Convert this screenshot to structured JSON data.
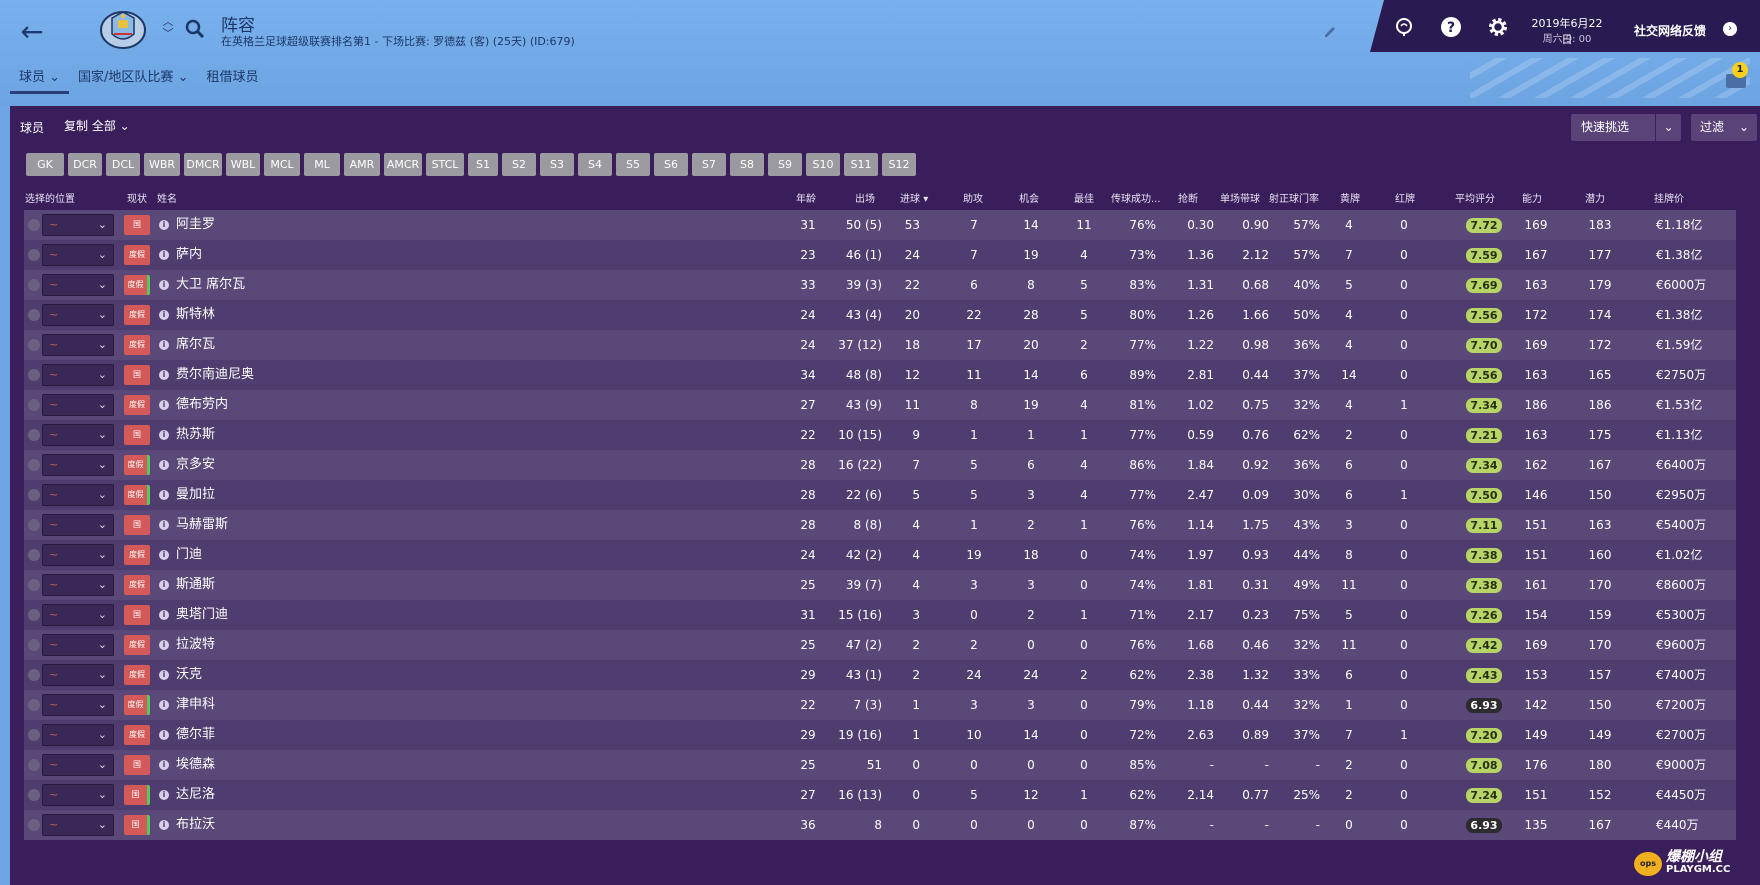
{
  "header": {
    "title": "阵容",
    "subtitle": "在英格兰足球超级联赛排名第1 - 下场比赛: 罗德兹 (客) (25天) (ID:679)",
    "date": "2019年6月22日",
    "date_sub": "周六 9: 00",
    "social_label": "社交网络反馈"
  },
  "subnav": {
    "items": [
      "球员",
      "国家/地区队比赛",
      "租借球员"
    ]
  },
  "notification_count": "1",
  "toolbar": {
    "players_label": "球员",
    "copy_label": "复制 全部",
    "quick_pick_label": "快速挑选",
    "filter_label": "过滤"
  },
  "positions": [
    "GK",
    "DCR",
    "DCL",
    "WBR",
    "DMCR",
    "WBL",
    "MCL",
    "ML",
    "AMR",
    "AMCR",
    "STCL",
    "S1",
    "S2",
    "S3",
    "S4",
    "S5",
    "S6",
    "S7",
    "S8",
    "S9",
    "S10",
    "S11",
    "S12"
  ],
  "columns": {
    "select_pos": "选择的位置",
    "status": "现状",
    "name": "姓名",
    "age": "年龄",
    "apps": "出场",
    "goals": "进球",
    "assists": "助攻",
    "chances": "机会",
    "pom": "最佳",
    "pass": "传球成功...",
    "tackles": "抢断",
    "dribbles": "单场带球",
    "shots": "射正球门率",
    "yellow": "黄牌",
    "red": "红牌",
    "avg": "平均评分",
    "ca": "能力",
    "pa": "潜力",
    "value": "挂牌价"
  },
  "players": [
    {
      "status": "国家/...",
      "green": false,
      "name": "阿圭罗",
      "age": "31",
      "apps": "50 (5)",
      "goals": "53",
      "assists": "7",
      "chances": "14",
      "pom": "11",
      "pass": "76%",
      "tackles": "0.30",
      "dribbles": "0.90",
      "shots": "57%",
      "yellow": "4",
      "red": "0",
      "avg": "7.72",
      "ca": "169",
      "pa": "183",
      "value": "€1.18亿"
    },
    {
      "status": "度假",
      "green": false,
      "name": "萨内",
      "age": "23",
      "apps": "46 (1)",
      "goals": "24",
      "assists": "7",
      "chances": "19",
      "pom": "4",
      "pass": "73%",
      "tackles": "1.36",
      "dribbles": "2.12",
      "shots": "57%",
      "yellow": "7",
      "red": "0",
      "avg": "7.59",
      "ca": "167",
      "pa": "177",
      "value": "€1.38亿"
    },
    {
      "status": "度假",
      "green": true,
      "name": "大卫 席尔瓦",
      "age": "33",
      "apps": "39 (3)",
      "goals": "22",
      "assists": "6",
      "chances": "8",
      "pom": "5",
      "pass": "83%",
      "tackles": "1.31",
      "dribbles": "0.68",
      "shots": "40%",
      "yellow": "5",
      "red": "0",
      "avg": "7.69",
      "ca": "163",
      "pa": "179",
      "value": "€6000万"
    },
    {
      "status": "度假",
      "green": false,
      "name": "斯特林",
      "age": "24",
      "apps": "43 (4)",
      "goals": "20",
      "assists": "22",
      "chances": "28",
      "pom": "5",
      "pass": "80%",
      "tackles": "1.26",
      "dribbles": "1.66",
      "shots": "50%",
      "yellow": "4",
      "red": "0",
      "avg": "7.56",
      "ca": "172",
      "pa": "174",
      "value": "€1.38亿"
    },
    {
      "status": "度假",
      "green": false,
      "name": "席尔瓦",
      "age": "24",
      "apps": "37 (12)",
      "goals": "18",
      "assists": "17",
      "chances": "20",
      "pom": "2",
      "pass": "77%",
      "tackles": "1.22",
      "dribbles": "0.98",
      "shots": "36%",
      "yellow": "4",
      "red": "0",
      "avg": "7.70",
      "ca": "169",
      "pa": "172",
      "value": "€1.59亿"
    },
    {
      "status": "国家/...",
      "green": false,
      "name": "费尔南迪尼奥",
      "age": "34",
      "apps": "48 (8)",
      "goals": "12",
      "assists": "11",
      "chances": "14",
      "pom": "6",
      "pass": "89%",
      "tackles": "2.81",
      "dribbles": "0.44",
      "shots": "37%",
      "yellow": "14",
      "red": "0",
      "avg": "7.56",
      "ca": "163",
      "pa": "165",
      "value": "€2750万"
    },
    {
      "status": "度假",
      "green": false,
      "name": "德布劳内",
      "age": "27",
      "apps": "43 (9)",
      "goals": "11",
      "assists": "8",
      "chances": "19",
      "pom": "4",
      "pass": "81%",
      "tackles": "1.02",
      "dribbles": "0.75",
      "shots": "32%",
      "yellow": "4",
      "red": "1",
      "avg": "7.34",
      "ca": "186",
      "pa": "186",
      "value": "€1.53亿"
    },
    {
      "status": "国家/...",
      "green": false,
      "name": "热苏斯",
      "age": "22",
      "apps": "10 (15)",
      "goals": "9",
      "assists": "1",
      "chances": "1",
      "pom": "1",
      "pass": "77%",
      "tackles": "0.59",
      "dribbles": "0.76",
      "shots": "62%",
      "yellow": "2",
      "red": "0",
      "avg": "7.21",
      "ca": "163",
      "pa": "175",
      "value": "€1.13亿"
    },
    {
      "status": "度假",
      "green": true,
      "name": "京多安",
      "age": "28",
      "apps": "16 (22)",
      "goals": "7",
      "assists": "5",
      "chances": "6",
      "pom": "4",
      "pass": "86%",
      "tackles": "1.84",
      "dribbles": "0.92",
      "shots": "36%",
      "yellow": "6",
      "red": "0",
      "avg": "7.34",
      "ca": "162",
      "pa": "167",
      "value": "€6400万"
    },
    {
      "status": "度假",
      "green": true,
      "name": "曼加拉",
      "age": "28",
      "apps": "22 (6)",
      "goals": "5",
      "assists": "5",
      "chances": "3",
      "pom": "4",
      "pass": "77%",
      "tackles": "2.47",
      "dribbles": "0.09",
      "shots": "30%",
      "yellow": "6",
      "red": "1",
      "avg": "7.50",
      "ca": "146",
      "pa": "150",
      "value": "€2950万"
    },
    {
      "status": "国家/...",
      "green": false,
      "name": "马赫雷斯",
      "age": "28",
      "apps": "8 (8)",
      "goals": "4",
      "assists": "1",
      "chances": "2",
      "pom": "1",
      "pass": "76%",
      "tackles": "1.14",
      "dribbles": "1.75",
      "shots": "43%",
      "yellow": "3",
      "red": "0",
      "avg": "7.11",
      "ca": "151",
      "pa": "163",
      "value": "€5400万"
    },
    {
      "status": "度假",
      "green": false,
      "name": "门迪",
      "age": "24",
      "apps": "42 (2)",
      "goals": "4",
      "assists": "19",
      "chances": "18",
      "pom": "0",
      "pass": "74%",
      "tackles": "1.97",
      "dribbles": "0.93",
      "shots": "44%",
      "yellow": "8",
      "red": "0",
      "avg": "7.38",
      "ca": "151",
      "pa": "160",
      "value": "€1.02亿"
    },
    {
      "status": "度假",
      "green": false,
      "name": "斯通斯",
      "age": "25",
      "apps": "39 (7)",
      "goals": "4",
      "assists": "3",
      "chances": "3",
      "pom": "0",
      "pass": "74%",
      "tackles": "1.81",
      "dribbles": "0.31",
      "shots": "49%",
      "yellow": "11",
      "red": "0",
      "avg": "7.38",
      "ca": "161",
      "pa": "170",
      "value": "€8600万"
    },
    {
      "status": "国家/...",
      "green": false,
      "name": "奥塔门迪",
      "age": "31",
      "apps": "15 (16)",
      "goals": "3",
      "assists": "0",
      "chances": "2",
      "pom": "1",
      "pass": "71%",
      "tackles": "2.17",
      "dribbles": "0.23",
      "shots": "75%",
      "yellow": "5",
      "red": "0",
      "avg": "7.26",
      "ca": "154",
      "pa": "159",
      "value": "€5300万"
    },
    {
      "status": "度假",
      "green": false,
      "name": "拉波特",
      "age": "25",
      "apps": "47 (2)",
      "goals": "2",
      "assists": "2",
      "chances": "0",
      "pom": "0",
      "pass": "76%",
      "tackles": "1.68",
      "dribbles": "0.46",
      "shots": "32%",
      "yellow": "11",
      "red": "0",
      "avg": "7.42",
      "ca": "169",
      "pa": "170",
      "value": "€9600万"
    },
    {
      "status": "度假",
      "green": false,
      "name": "沃克",
      "age": "29",
      "apps": "43 (1)",
      "goals": "2",
      "assists": "24",
      "chances": "24",
      "pom": "2",
      "pass": "62%",
      "tackles": "2.38",
      "dribbles": "1.32",
      "shots": "33%",
      "yellow": "6",
      "red": "0",
      "avg": "7.43",
      "ca": "153",
      "pa": "157",
      "value": "€7400万"
    },
    {
      "status": "度假",
      "green": true,
      "name": "津申科",
      "age": "22",
      "apps": "7 (3)",
      "goals": "1",
      "assists": "3",
      "chances": "3",
      "pom": "0",
      "pass": "79%",
      "tackles": "1.18",
      "dribbles": "0.44",
      "shots": "32%",
      "yellow": "1",
      "red": "0",
      "avg": "6.93",
      "ca": "142",
      "pa": "150",
      "value": "€7200万"
    },
    {
      "status": "度假",
      "green": false,
      "name": "德尔菲",
      "age": "29",
      "apps": "19 (16)",
      "goals": "1",
      "assists": "10",
      "chances": "14",
      "pom": "0",
      "pass": "72%",
      "tackles": "2.63",
      "dribbles": "0.89",
      "shots": "37%",
      "yellow": "7",
      "red": "1",
      "avg": "7.20",
      "ca": "149",
      "pa": "149",
      "value": "€2700万"
    },
    {
      "status": "国家/...",
      "green": false,
      "name": "埃德森",
      "age": "25",
      "apps": "51",
      "goals": "0",
      "assists": "0",
      "chances": "0",
      "pom": "0",
      "pass": "85%",
      "tackles": "-",
      "dribbles": "-",
      "shots": "-",
      "yellow": "2",
      "red": "0",
      "avg": "7.08",
      "ca": "176",
      "pa": "180",
      "value": "€9000万"
    },
    {
      "status": "国家/...",
      "green": true,
      "name": "达尼洛",
      "age": "27",
      "apps": "16 (13)",
      "goals": "0",
      "assists": "5",
      "chances": "12",
      "pom": "1",
      "pass": "62%",
      "tackles": "2.14",
      "dribbles": "0.77",
      "shots": "25%",
      "yellow": "2",
      "red": "0",
      "avg": "7.24",
      "ca": "151",
      "pa": "152",
      "value": "€4450万"
    },
    {
      "status": "国家/...",
      "green": true,
      "name": "布拉沃",
      "age": "36",
      "apps": "8",
      "goals": "0",
      "assists": "0",
      "chances": "0",
      "pom": "0",
      "pass": "87%",
      "tackles": "-",
      "dribbles": "-",
      "shots": "-",
      "yellow": "0",
      "red": "0",
      "avg": "6.93",
      "ca": "135",
      "pa": "167",
      "value": "€440万"
    }
  ],
  "watermark": {
    "text": "爆棚小组",
    "sub": "PLAYGM.CC",
    "logo": "ops"
  }
}
